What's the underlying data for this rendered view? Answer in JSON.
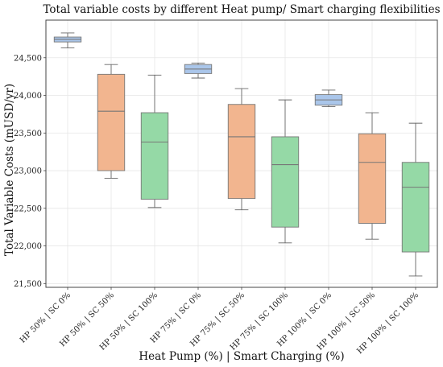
{
  "chart_data": {
    "type": "box",
    "title": "Total variable costs by different Heat pump/ Smart charging flexibilities",
    "xlabel": "Heat Pump (%) | Smart Charging (%)",
    "ylabel": "Total Variable Costs (mUSD/yr)",
    "ylim": [
      21450,
      25000
    ],
    "yticks": [
      21500,
      22000,
      22500,
      23000,
      23500,
      24000,
      24500
    ],
    "ytick_labels": [
      "21,500",
      "22,000",
      "22,500",
      "23,000",
      "23,500",
      "24,000",
      "24,500"
    ],
    "grid": true,
    "colors": {
      "SC 0%": "#aac6ea",
      "SC 50%": "#f2b58f",
      "SC 100%": "#95d9a6"
    },
    "categories": [
      "HP 50% | SC 0%",
      "HP 50% | SC 50%",
      "HP 50% | SC 100%",
      "HP 75% | SC 0%",
      "HP 75% | SC 50%",
      "HP 75% | SC 100%",
      "HP 100% | SC 0%",
      "HP 100% | SC 50%",
      "HP 100% | SC 100%"
    ],
    "boxes": [
      {
        "group": "SC 0%",
        "whislo": 24630,
        "q1": 24710,
        "med": 24745,
        "q3": 24775,
        "whishi": 24830
      },
      {
        "group": "SC 50%",
        "whislo": 22900,
        "q1": 23000,
        "med": 23790,
        "q3": 24280,
        "whishi": 24410
      },
      {
        "group": "SC 100%",
        "whislo": 22510,
        "q1": 22620,
        "med": 23380,
        "q3": 23770,
        "whishi": 24270
      },
      {
        "group": "SC 0%",
        "whislo": 24230,
        "q1": 24290,
        "med": 24350,
        "q3": 24410,
        "whishi": 24430
      },
      {
        "group": "SC 50%",
        "whislo": 22480,
        "q1": 22630,
        "med": 23450,
        "q3": 23880,
        "whishi": 24090
      },
      {
        "group": "SC 100%",
        "whislo": 22040,
        "q1": 22250,
        "med": 23080,
        "q3": 23450,
        "whishi": 23940
      },
      {
        "group": "SC 0%",
        "whislo": 23850,
        "q1": 23870,
        "med": 23940,
        "q3": 24010,
        "whishi": 24070
      },
      {
        "group": "SC 50%",
        "whislo": 22090,
        "q1": 22300,
        "med": 23110,
        "q3": 23490,
        "whishi": 23770
      },
      {
        "group": "SC 100%",
        "whislo": 21600,
        "q1": 21920,
        "med": 22780,
        "q3": 23110,
        "whishi": 23630
      }
    ]
  }
}
